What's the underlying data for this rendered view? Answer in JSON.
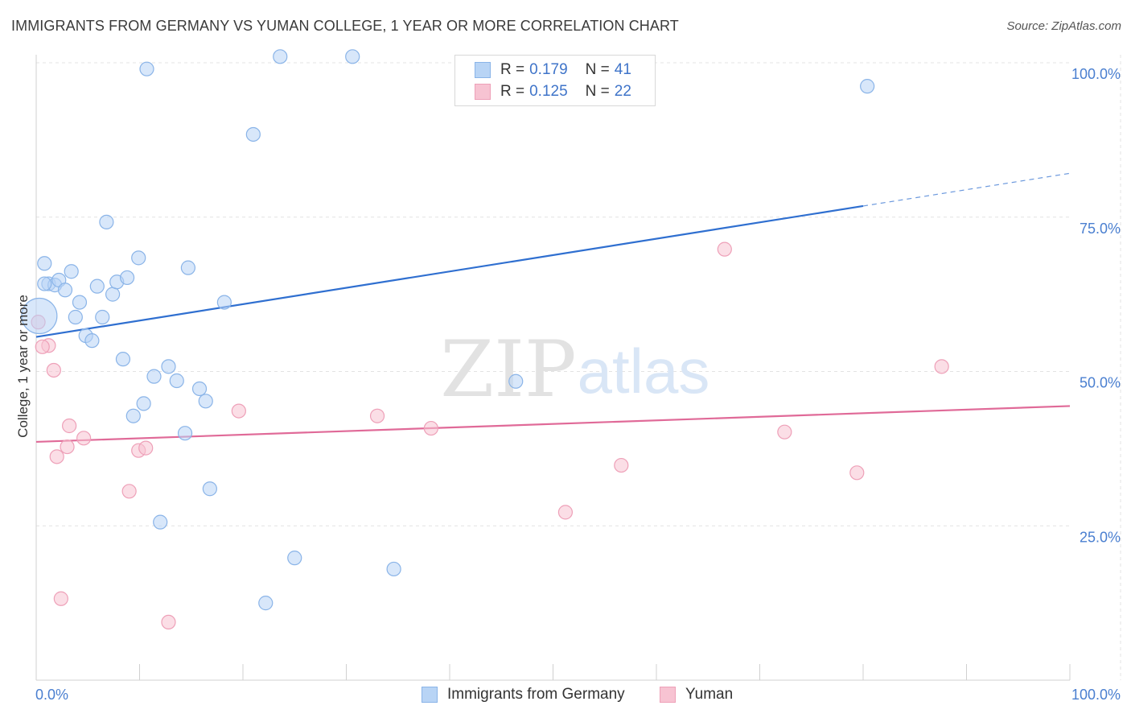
{
  "header": {
    "title": "IMMIGRANTS FROM GERMANY VS YUMAN COLLEGE, 1 YEAR OR MORE CORRELATION CHART",
    "source": "Source: ZipAtlas.com"
  },
  "watermark": {
    "zip": "ZIP",
    "atlas": "atlas"
  },
  "legend": {
    "rows": [
      {
        "r_label": "R =",
        "r_value": "0.179",
        "n_label": "N =",
        "n_value": "41"
      },
      {
        "r_label": "R =",
        "r_value": "0.125",
        "n_label": "N =",
        "n_value": "22"
      }
    ]
  },
  "bottom_legend": {
    "series1": "Immigrants from Germany",
    "series2": "Yuman"
  },
  "colors": {
    "blue_fill": "#b8d4f5",
    "blue_stroke": "#8ab4e8",
    "blue_line": "#2f6fd0",
    "pink_fill": "#f7c3d2",
    "pink_stroke": "#eea0b8",
    "pink_line": "#e06a98",
    "tick_text": "#4a7fd0",
    "grid": "#e3e3e3"
  },
  "chart_data": {
    "type": "scatter",
    "title": "IMMIGRANTS FROM GERMANY VS YUMAN COLLEGE, 1 YEAR OR MORE CORRELATION CHART",
    "xlabel": "",
    "ylabel": "College, 1 year or more",
    "xlim": [
      0,
      100
    ],
    "ylim": [
      0,
      100
    ],
    "x_tick_labels": [
      "0.0%",
      "100.0%"
    ],
    "y_ticks": [
      25,
      50,
      75,
      100
    ],
    "y_tick_labels": [
      "25.0%",
      "50.0%",
      "75.0%",
      "100.0%"
    ],
    "grid": true,
    "series": [
      {
        "name": "Immigrants from Germany",
        "color": "#8ab4e8",
        "r": 0.179,
        "n": 41,
        "trend": {
          "x0": 0,
          "y0": 55.6,
          "x1": 80,
          "y1": 76.8,
          "dashed_to_x": 100,
          "dashed_to_y": 82.1
        },
        "points": [
          {
            "x": 0.3,
            "y": 59.0,
            "big": true
          },
          {
            "x": 0.8,
            "y": 67.5
          },
          {
            "x": 1.2,
            "y": 64.2
          },
          {
            "x": 1.8,
            "y": 64.0
          },
          {
            "x": 2.2,
            "y": 64.8
          },
          {
            "x": 2.8,
            "y": 63.2
          },
          {
            "x": 3.4,
            "y": 66.2
          },
          {
            "x": 3.8,
            "y": 58.8
          },
          {
            "x": 4.2,
            "y": 61.2
          },
          {
            "x": 4.8,
            "y": 55.8
          },
          {
            "x": 5.4,
            "y": 55.0
          },
          {
            "x": 5.9,
            "y": 63.8
          },
          {
            "x": 6.4,
            "y": 58.8
          },
          {
            "x": 6.8,
            "y": 74.2
          },
          {
            "x": 7.4,
            "y": 62.5
          },
          {
            "x": 7.8,
            "y": 64.5
          },
          {
            "x": 8.4,
            "y": 52.0
          },
          {
            "x": 8.8,
            "y": 65.2
          },
          {
            "x": 9.4,
            "y": 42.8
          },
          {
            "x": 9.9,
            "y": 68.4
          },
          {
            "x": 10.4,
            "y": 44.8
          },
          {
            "x": 10.7,
            "y": 99.0
          },
          {
            "x": 11.4,
            "y": 49.2
          },
          {
            "x": 12.0,
            "y": 25.6
          },
          {
            "x": 12.8,
            "y": 50.8
          },
          {
            "x": 13.6,
            "y": 48.5
          },
          {
            "x": 14.4,
            "y": 40.0
          },
          {
            "x": 14.7,
            "y": 66.8
          },
          {
            "x": 15.8,
            "y": 47.2
          },
          {
            "x": 16.4,
            "y": 45.2
          },
          {
            "x": 16.8,
            "y": 31.0
          },
          {
            "x": 18.2,
            "y": 61.2
          },
          {
            "x": 21.0,
            "y": 88.4
          },
          {
            "x": 22.2,
            "y": 12.5
          },
          {
            "x": 23.6,
            "y": 101.0
          },
          {
            "x": 25.0,
            "y": 19.8
          },
          {
            "x": 30.6,
            "y": 101.0
          },
          {
            "x": 34.6,
            "y": 18.0
          },
          {
            "x": 46.4,
            "y": 48.4
          },
          {
            "x": 80.4,
            "y": 96.2
          },
          {
            "x": 0.8,
            "y": 64.2
          }
        ]
      },
      {
        "name": "Yuman",
        "color": "#eea0b8",
        "r": 0.125,
        "n": 22,
        "trend": {
          "x0": 0,
          "y0": 38.6,
          "x1": 100,
          "y1": 44.4
        },
        "points": [
          {
            "x": 0.2,
            "y": 58.0
          },
          {
            "x": 1.2,
            "y": 54.2
          },
          {
            "x": 1.7,
            "y": 50.2
          },
          {
            "x": 2.0,
            "y": 36.2
          },
          {
            "x": 2.4,
            "y": 13.2
          },
          {
            "x": 3.0,
            "y": 37.8
          },
          {
            "x": 3.2,
            "y": 41.2
          },
          {
            "x": 4.6,
            "y": 39.2
          },
          {
            "x": 9.0,
            "y": 30.6
          },
          {
            "x": 9.9,
            "y": 37.2
          },
          {
            "x": 10.6,
            "y": 37.6
          },
          {
            "x": 12.8,
            "y": 9.4
          },
          {
            "x": 19.6,
            "y": 43.6
          },
          {
            "x": 33.0,
            "y": 42.8
          },
          {
            "x": 38.2,
            "y": 40.8
          },
          {
            "x": 51.2,
            "y": 27.2
          },
          {
            "x": 56.6,
            "y": 34.8
          },
          {
            "x": 66.6,
            "y": 69.8
          },
          {
            "x": 72.4,
            "y": 40.2
          },
          {
            "x": 79.4,
            "y": 33.6
          },
          {
            "x": 87.6,
            "y": 50.8
          },
          {
            "x": 0.6,
            "y": 54.0
          }
        ]
      }
    ]
  }
}
